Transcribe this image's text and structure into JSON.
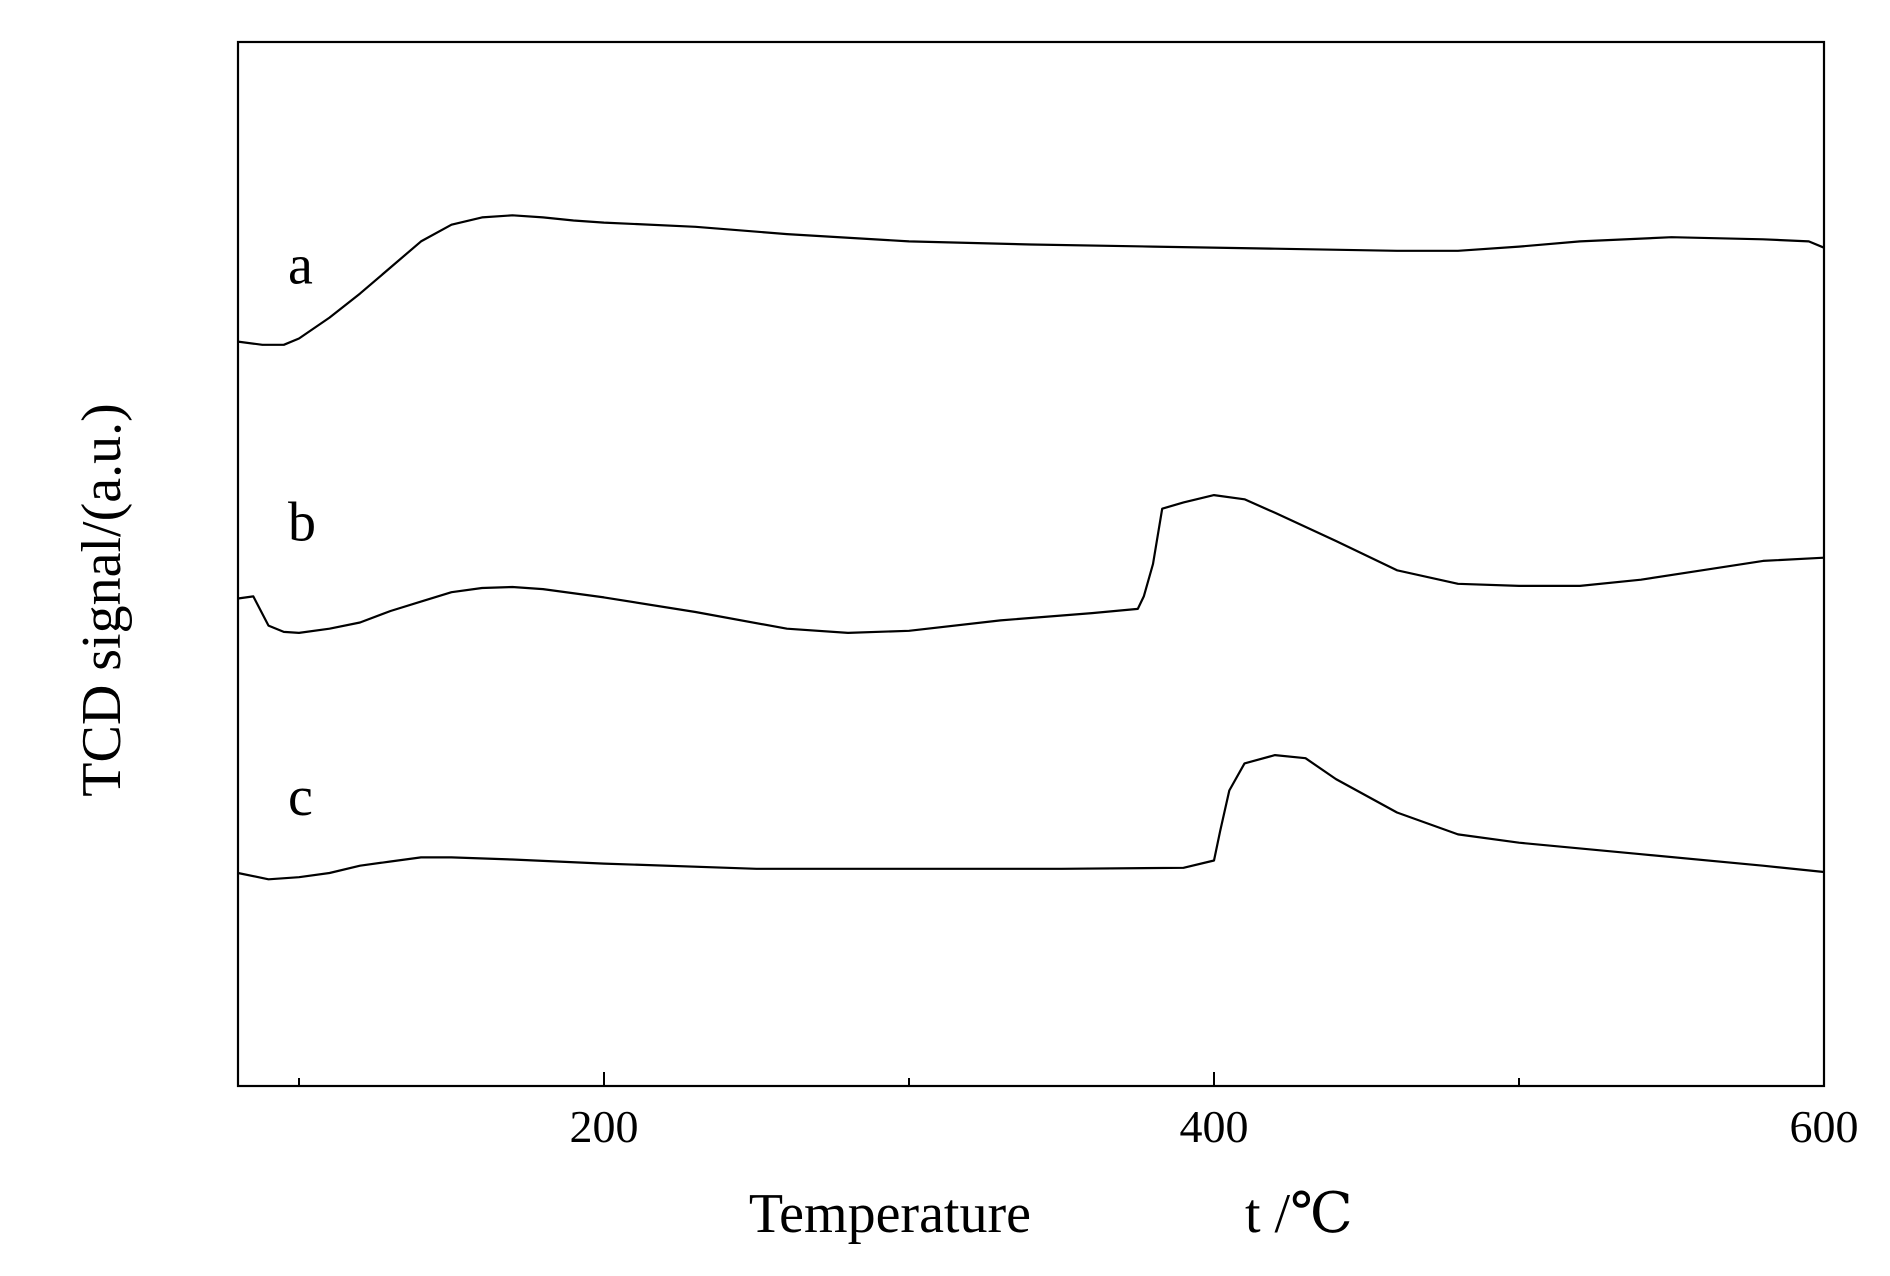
{
  "chart_data": {
    "type": "line",
    "xlabel": "Temperature",
    "xlabel_unit": "t /℃",
    "ylabel": "TCD signal/(a.u.)",
    "xlim": [
      80,
      600
    ],
    "ylim": [
      0,
      100
    ],
    "x_ticks_major": [
      200,
      400,
      600
    ],
    "x_ticks_minor": [
      100,
      300,
      500
    ],
    "y_ticks": [],
    "grid": false,
    "legend": "none",
    "series": [
      {
        "name": "a",
        "color": "#000000",
        "x": [
          80,
          88,
          95,
          100,
          110,
          120,
          130,
          140,
          150,
          160,
          170,
          180,
          190,
          200,
          230,
          260,
          300,
          340,
          380,
          420,
          460,
          480,
          500,
          520,
          550,
          580,
          595,
          600
        ],
        "y": [
          71.3,
          71.0,
          71.0,
          71.6,
          73.6,
          75.9,
          78.4,
          80.9,
          82.5,
          83.2,
          83.4,
          83.2,
          82.9,
          82.7,
          82.3,
          81.6,
          80.9,
          80.6,
          80.4,
          80.2,
          80.0,
          80.0,
          80.4,
          80.9,
          81.3,
          81.1,
          80.9,
          80.3
        ]
      },
      {
        "name": "b",
        "color": "#000000",
        "x": [
          80,
          85,
          90,
          95,
          100,
          110,
          120,
          130,
          140,
          150,
          160,
          170,
          180,
          200,
          230,
          260,
          280,
          300,
          330,
          360,
          375,
          377,
          380,
          383,
          390,
          400,
          410,
          420,
          440,
          460,
          480,
          500,
          520,
          540,
          560,
          580,
          600
        ],
        "y": [
          46.7,
          46.9,
          44.1,
          43.5,
          43.4,
          43.8,
          44.4,
          45.5,
          46.4,
          47.3,
          47.7,
          47.8,
          47.6,
          46.8,
          45.4,
          43.8,
          43.4,
          43.6,
          44.6,
          45.3,
          45.7,
          46.9,
          50.0,
          55.3,
          55.9,
          56.6,
          56.2,
          54.9,
          52.2,
          49.4,
          48.1,
          47.9,
          47.9,
          48.5,
          49.4,
          50.3,
          50.6
        ]
      },
      {
        "name": "c",
        "color": "#000000",
        "x": [
          80,
          90,
          100,
          110,
          120,
          130,
          140,
          150,
          170,
          200,
          250,
          300,
          350,
          390,
          400,
          402,
          405,
          410,
          420,
          430,
          440,
          460,
          480,
          500,
          540,
          580,
          600
        ],
        "y": [
          20.4,
          19.8,
          20.0,
          20.4,
          21.1,
          21.5,
          21.9,
          21.9,
          21.7,
          21.3,
          20.8,
          20.8,
          20.8,
          20.9,
          21.6,
          24.4,
          28.3,
          30.9,
          31.7,
          31.4,
          29.4,
          26.2,
          24.1,
          23.3,
          22.2,
          21.1,
          20.5
        ]
      }
    ]
  }
}
